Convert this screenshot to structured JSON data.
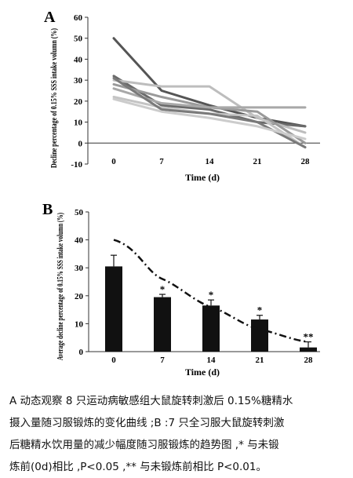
{
  "chart_data": [
    {
      "panel_label": "A",
      "type": "line",
      "ylabel": "Decline percentage of 0.15% SSS intake volumn (%)",
      "xlabel": "Time (d)",
      "categories": [
        "0",
        "7",
        "14",
        "21",
        "28"
      ],
      "ylim": [
        -10,
        60
      ],
      "yticks": [
        "60",
        "50",
        "40",
        "30",
        "20",
        "10",
        "0",
        "-10"
      ],
      "series": [
        {
          "values": [
            50,
            25,
            18,
            12,
            8
          ],
          "color": "#555555"
        },
        {
          "values": [
            32,
            18,
            16,
            10,
            8
          ],
          "color": "#6a6a6a"
        },
        {
          "values": [
            30,
            27,
            27,
            12,
            5
          ],
          "color": "#bdbdbd"
        },
        {
          "values": [
            28,
            22,
            17,
            15,
            0
          ],
          "color": "#9a9a9a"
        },
        {
          "values": [
            26,
            19,
            17,
            17,
            17
          ],
          "color": "#a8a8a8"
        },
        {
          "values": [
            22,
            17,
            14,
            13,
            -2
          ],
          "color": "#c4c4c4"
        },
        {
          "values": [
            31,
            16,
            14,
            10,
            -2
          ],
          "color": "#7a7a7a"
        },
        {
          "values": [
            21,
            15,
            12,
            8,
            2
          ],
          "color": "#cccccc"
        }
      ]
    },
    {
      "panel_label": "B",
      "type": "bar",
      "ylabel": "Average decline percentage of 0.15% SSS intake volumn (%)",
      "xlabel": "Time (d)",
      "categories": [
        "0",
        "7",
        "14",
        "21",
        "28"
      ],
      "ylim": [
        0,
        50
      ],
      "yticks": [
        "50",
        "40",
        "30",
        "20",
        "10",
        "0"
      ],
      "values": [
        30.5,
        19.5,
        16.5,
        11.5,
        1.5
      ],
      "errors": [
        4,
        1,
        2,
        1.5,
        2
      ],
      "significance": [
        "",
        "*",
        "*",
        "*",
        "**"
      ],
      "trend": [
        40,
        26,
        16,
        8,
        3.5
      ]
    }
  ],
  "caption_lines": [
    "A 动态观察 8 只运动病敏感组大鼠旋转刺激后 0.15%糖精水",
    "摄入量随习服锻炼的变化曲线 ;B :7 只全习服大鼠旋转刺激",
    "后糖精水饮用量的减少幅度随习服锻炼的趋势图 ,* 与未锻",
    "炼前(0d)相比 ,P<0.05 ,** 与未锻炼前相比 P<0.01。"
  ]
}
